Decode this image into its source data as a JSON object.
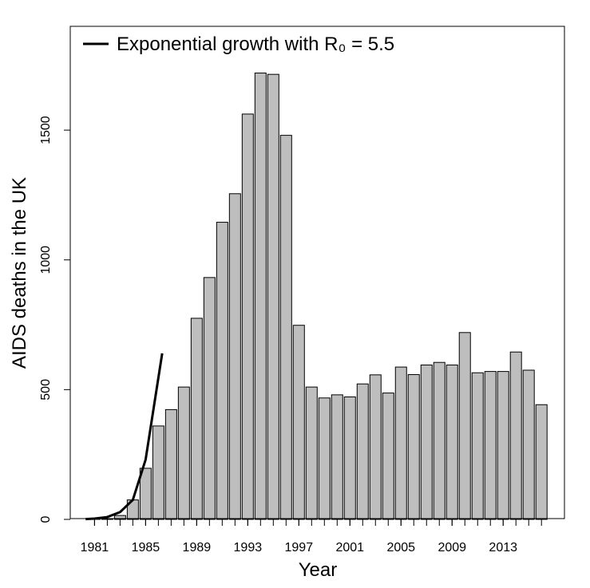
{
  "chart_data": {
    "type": "bar",
    "x_label": "Year",
    "y_label": "AIDS deaths in the UK",
    "x": [
      1981,
      1982,
      1983,
      1984,
      1985,
      1986,
      1987,
      1988,
      1989,
      1990,
      1991,
      1992,
      1993,
      1994,
      1995,
      1996,
      1997,
      1998,
      1999,
      2000,
      2001,
      2002,
      2003,
      2004,
      2005,
      2006,
      2007,
      2008,
      2009,
      2010,
      2011,
      2012,
      2013,
      2014,
      2015,
      2016
    ],
    "values": [
      1,
      3,
      15,
      75,
      197,
      360,
      423,
      510,
      775,
      932,
      1145,
      1255,
      1562,
      1720,
      1715,
      1480,
      748,
      510,
      468,
      480,
      472,
      522,
      557,
      487,
      587,
      558,
      595,
      605,
      595,
      720,
      565,
      570,
      570,
      645,
      575,
      442
    ],
    "color": "#bebebe",
    "xlim": [
      1979.1,
      2017.8
    ],
    "xticks": [
      1981,
      1985,
      1989,
      1993,
      1997,
      2001,
      2005,
      2009,
      2013
    ],
    "ylim": [
      0,
      1900
    ],
    "yticks": [
      0,
      500,
      1000,
      1500
    ],
    "line": {
      "name": "Exponential growth with R₀ = 5.5",
      "color": "#000000",
      "x": [
        1980.3,
        1981,
        1982,
        1983,
        1984,
        1985,
        1986.3
      ],
      "values": [
        1,
        3,
        9,
        28,
        75,
        230,
        640
      ]
    },
    "legend": "top-left"
  }
}
